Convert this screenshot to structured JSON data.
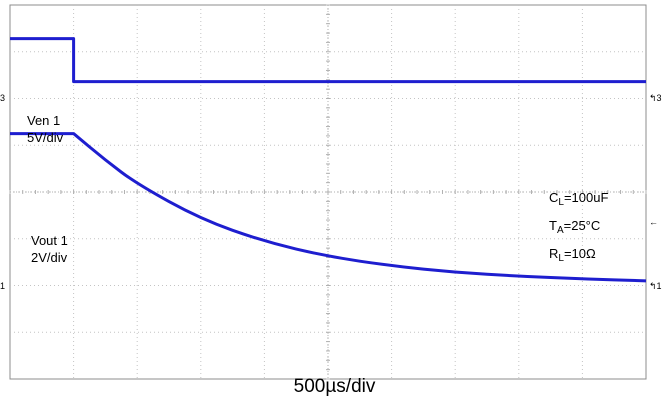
{
  "chart_data": {
    "type": "line",
    "xlabel": "500µs/div",
    "grid": true,
    "x_divisions": 10,
    "y_divisions": 8,
    "x_units": "div",
    "series": [
      {
        "label": "Ven 1",
        "scale": "5V/div",
        "color": "#1e1ecf",
        "x": [
          0,
          1.0,
          1.0,
          10
        ],
        "y": [
          7.28,
          7.28,
          6.36,
          6.36
        ]
      },
      {
        "label": "Vout 1",
        "scale": "2V/div",
        "color": "#1e1ecf",
        "x": [
          0,
          1.0,
          1.5,
          2.0,
          3.0,
          4.0,
          5.0,
          6.0,
          7.0,
          8.0,
          9.0,
          10
        ],
        "y": [
          5.25,
          5.25,
          4.68,
          4.17,
          3.42,
          2.94,
          2.62,
          2.42,
          2.28,
          2.2,
          2.14,
          2.1
        ]
      }
    ],
    "annotations": [
      {
        "id": "cl",
        "main": "C",
        "sub": "L",
        "rest": "=100uF"
      },
      {
        "id": "ta",
        "main": "T",
        "sub": "A",
        "rest": "=25°C"
      },
      {
        "id": "rl",
        "main": "R",
        "sub": "L",
        "rest": "=10Ω"
      }
    ],
    "marker_color": "#2db82d"
  }
}
